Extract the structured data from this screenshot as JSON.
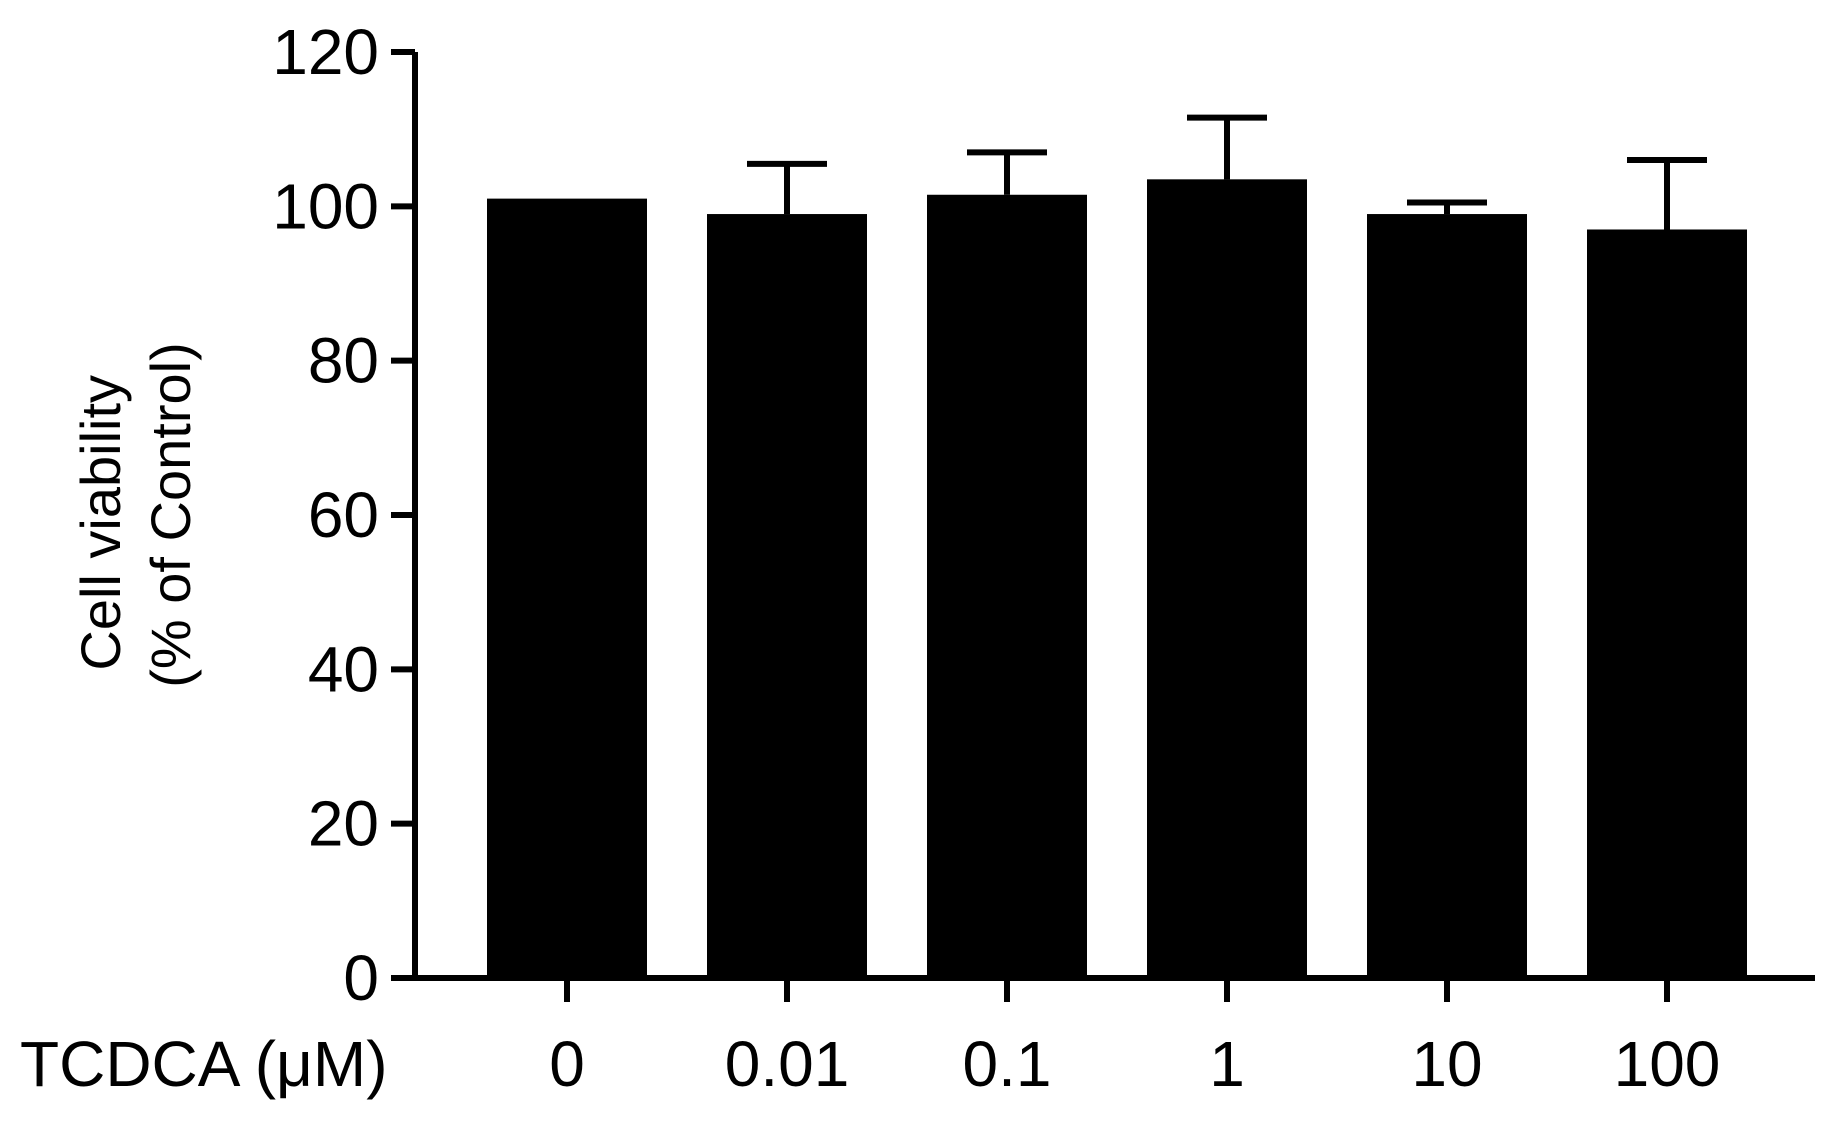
{
  "chart_data": {
    "type": "bar",
    "title": "",
    "xlabel": "TCDCA (μM)",
    "ylabel_lines": [
      "Cell viability",
      "(% of Control)"
    ],
    "categories": [
      "0",
      "0.01",
      "0.1",
      "1",
      "10",
      "100"
    ],
    "values": [
      101,
      99,
      101.5,
      103.5,
      99,
      97
    ],
    "error_upper": [
      0,
      6.5,
      5.5,
      8,
      1.5,
      9
    ],
    "ylim": [
      0,
      120
    ],
    "yticks": [
      0,
      20,
      40,
      60,
      80,
      100,
      120
    ],
    "grid": false,
    "legend": "none",
    "bar_color": "#000000"
  }
}
